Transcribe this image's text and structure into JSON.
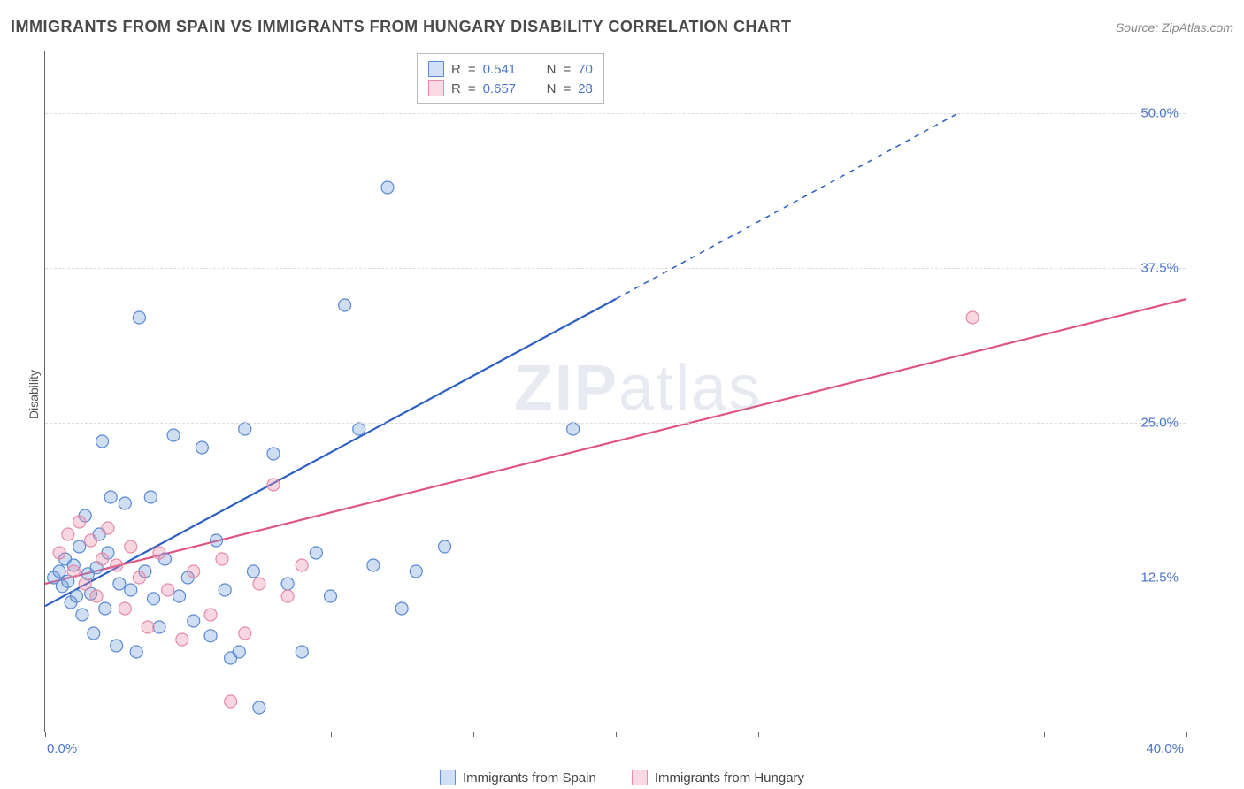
{
  "title": "IMMIGRANTS FROM SPAIN VS IMMIGRANTS FROM HUNGARY DISABILITY CORRELATION CHART",
  "source": "Source: ZipAtlas.com",
  "ylabel": "Disability",
  "watermark": "ZIPatlas",
  "chart": {
    "type": "scatter",
    "xlim": [
      0,
      40
    ],
    "ylim": [
      0,
      55
    ],
    "xtick_positions": [
      0,
      5,
      10,
      15,
      20,
      25,
      30,
      35,
      40
    ],
    "xtick_labels": {
      "0": "0.0%",
      "40": "40.0%"
    },
    "ytick_positions": [
      12.5,
      25.0,
      37.5,
      50.0
    ],
    "ytick_labels": [
      "12.5%",
      "25.0%",
      "37.5%",
      "50.0%"
    ],
    "background_color": "#ffffff",
    "grid_color": "#dddddd",
    "axis_color": "#666666",
    "label_color": "#4a74c9",
    "marker_radius": 7,
    "marker_stroke_width": 1.2,
    "line_width": 2.2
  },
  "series": [
    {
      "name": "Immigrants from Spain",
      "fill": "rgba(120,160,220,0.35)",
      "stroke": "#5a8ad4",
      "line_color": "#2c5fc4",
      "swatch_fill": "#cfe0f7",
      "swatch_border": "#5a8ad4",
      "R": "0.541",
      "N": "70",
      "trend": {
        "x1": 0,
        "y1": 10.2,
        "x2": 20,
        "y2": 35.0,
        "dash_to_x": 32,
        "dash_to_y": 50.0
      },
      "points": [
        [
          0.3,
          12.5
        ],
        [
          0.5,
          13.0
        ],
        [
          0.6,
          11.8
        ],
        [
          0.7,
          14.0
        ],
        [
          0.8,
          12.2
        ],
        [
          0.9,
          10.5
        ],
        [
          1.0,
          13.5
        ],
        [
          1.1,
          11.0
        ],
        [
          1.2,
          15.0
        ],
        [
          1.3,
          9.5
        ],
        [
          1.4,
          17.5
        ],
        [
          1.5,
          12.8
        ],
        [
          1.6,
          11.2
        ],
        [
          1.7,
          8.0
        ],
        [
          1.8,
          13.3
        ],
        [
          1.9,
          16.0
        ],
        [
          2.0,
          23.5
        ],
        [
          2.1,
          10.0
        ],
        [
          2.2,
          14.5
        ],
        [
          2.3,
          19.0
        ],
        [
          2.5,
          7.0
        ],
        [
          2.6,
          12.0
        ],
        [
          2.8,
          18.5
        ],
        [
          3.0,
          11.5
        ],
        [
          3.2,
          6.5
        ],
        [
          3.3,
          33.5
        ],
        [
          3.5,
          13.0
        ],
        [
          3.7,
          19.0
        ],
        [
          3.8,
          10.8
        ],
        [
          4.0,
          8.5
        ],
        [
          4.2,
          14.0
        ],
        [
          4.5,
          24.0
        ],
        [
          4.7,
          11.0
        ],
        [
          5.0,
          12.5
        ],
        [
          5.2,
          9.0
        ],
        [
          5.5,
          23.0
        ],
        [
          5.8,
          7.8
        ],
        [
          6.0,
          15.5
        ],
        [
          6.3,
          11.5
        ],
        [
          6.5,
          6.0
        ],
        [
          7.0,
          24.5
        ],
        [
          7.3,
          13.0
        ],
        [
          7.5,
          2.0
        ],
        [
          8.0,
          22.5
        ],
        [
          8.5,
          12.0
        ],
        [
          9.0,
          6.5
        ],
        [
          9.5,
          14.5
        ],
        [
          10.0,
          11.0
        ],
        [
          10.5,
          34.5
        ],
        [
          11.0,
          24.5
        ],
        [
          11.5,
          13.5
        ],
        [
          12.0,
          44.0
        ],
        [
          12.5,
          10.0
        ],
        [
          13.0,
          13.0
        ],
        [
          14.0,
          15.0
        ],
        [
          18.5,
          24.5
        ],
        [
          6.8,
          6.5
        ]
      ]
    },
    {
      "name": "Immigrants from Hungary",
      "fill": "rgba(235,140,170,0.35)",
      "stroke": "#e68aaa",
      "line_color": "#e0557e",
      "swatch_fill": "#f9d9e3",
      "swatch_border": "#e68aaa",
      "R": "0.657",
      "N": "28",
      "trend": {
        "x1": 0,
        "y1": 12.0,
        "x2": 40,
        "y2": 35.0
      },
      "points": [
        [
          0.5,
          14.5
        ],
        [
          0.8,
          16.0
        ],
        [
          1.0,
          13.0
        ],
        [
          1.2,
          17.0
        ],
        [
          1.4,
          12.0
        ],
        [
          1.6,
          15.5
        ],
        [
          1.8,
          11.0
        ],
        [
          2.0,
          14.0
        ],
        [
          2.2,
          16.5
        ],
        [
          2.5,
          13.5
        ],
        [
          2.8,
          10.0
        ],
        [
          3.0,
          15.0
        ],
        [
          3.3,
          12.5
        ],
        [
          3.6,
          8.5
        ],
        [
          4.0,
          14.5
        ],
        [
          4.3,
          11.5
        ],
        [
          4.8,
          7.5
        ],
        [
          5.2,
          13.0
        ],
        [
          5.8,
          9.5
        ],
        [
          6.2,
          14.0
        ],
        [
          6.5,
          2.5
        ],
        [
          7.0,
          8.0
        ],
        [
          7.5,
          12.0
        ],
        [
          8.0,
          20.0
        ],
        [
          8.5,
          11.0
        ],
        [
          9.0,
          13.5
        ],
        [
          32.5,
          33.5
        ]
      ]
    }
  ],
  "stat_labels": {
    "R": "R",
    "N": "N",
    "eq": "="
  }
}
